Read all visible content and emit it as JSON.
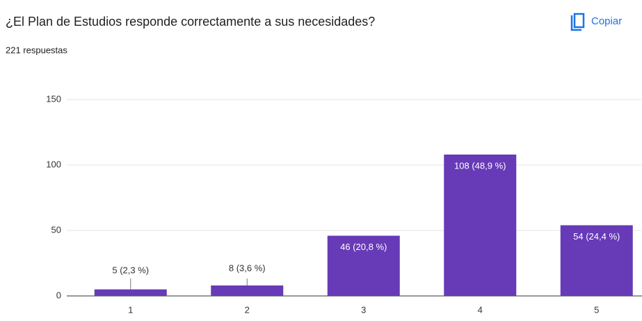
{
  "header": {
    "title": "¿El Plan de Estudios responde correctamente a sus necesidades?",
    "subtitle": "221 respuestas",
    "copy_button": "Copiar"
  },
  "chart_data": {
    "type": "bar",
    "categories": [
      "1",
      "2",
      "3",
      "4",
      "5"
    ],
    "values": [
      5,
      8,
      46,
      108,
      54
    ],
    "value_labels": [
      "5 (2,3 %)",
      "8 (3,6 %)",
      "46 (20,8 %)",
      "108 (48,9 %)",
      "54 (24,4 %)"
    ],
    "color": "#673ab7",
    "ylim": [
      0,
      150
    ],
    "yticks": [
      0,
      50,
      100,
      150
    ],
    "grid": true
  }
}
